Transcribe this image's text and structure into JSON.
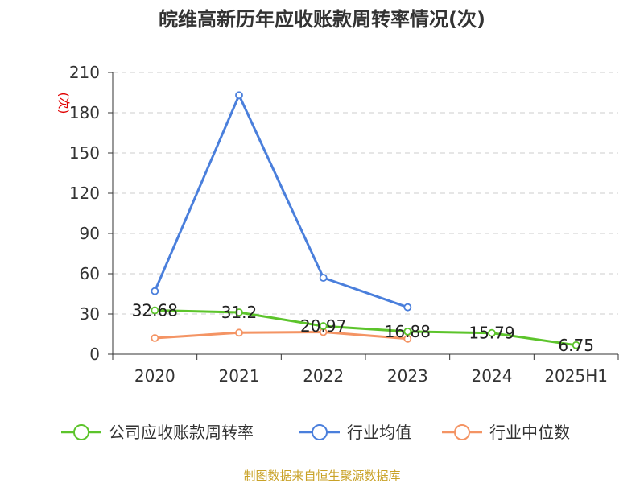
{
  "source": "制图数据来自恒生聚源数据库",
  "chart_data": {
    "type": "line",
    "title": "皖维高新历年应收账款周转率情况(次)",
    "ylabel": "(次)",
    "categories": [
      "2020",
      "2021",
      "2022",
      "2023",
      "2024",
      "2025H1"
    ],
    "ylim": [
      0,
      210
    ],
    "yticks": [
      "0",
      "30",
      "60",
      "90",
      "120",
      "150",
      "180",
      "210"
    ],
    "grid": true,
    "legend_position": "bottom",
    "series": [
      {
        "name": "公司应收账款周转率",
        "color": "#5cc42b",
        "values": [
          32.68,
          31.2,
          20.97,
          16.88,
          15.79,
          6.75
        ],
        "labels": [
          "32.68",
          "31.2",
          "20.97",
          "16.88",
          "15.79",
          "6.75"
        ]
      },
      {
        "name": "行业均值",
        "color": "#4a7fdc",
        "values": [
          47,
          193,
          57,
          35,
          null,
          null
        ]
      },
      {
        "name": "行业中位数",
        "color": "#f49464",
        "values": [
          12,
          16,
          16.5,
          11.5,
          null,
          null
        ]
      }
    ]
  }
}
